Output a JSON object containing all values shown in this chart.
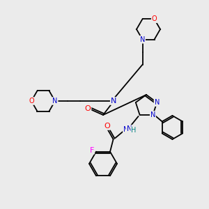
{
  "background_color": "#ebebeb",
  "atom_colors": {
    "N": "#0000cc",
    "O": "#ff0000",
    "F": "#ff00ff",
    "C": "#000000",
    "H": "#008080"
  },
  "bond_color": "#000000",
  "figsize": [
    3.0,
    3.0
  ],
  "dpi": 100,
  "lw": 1.3,
  "morph_r": 17,
  "pyr_r": 16,
  "ph_r": 17,
  "fp_r": 20
}
